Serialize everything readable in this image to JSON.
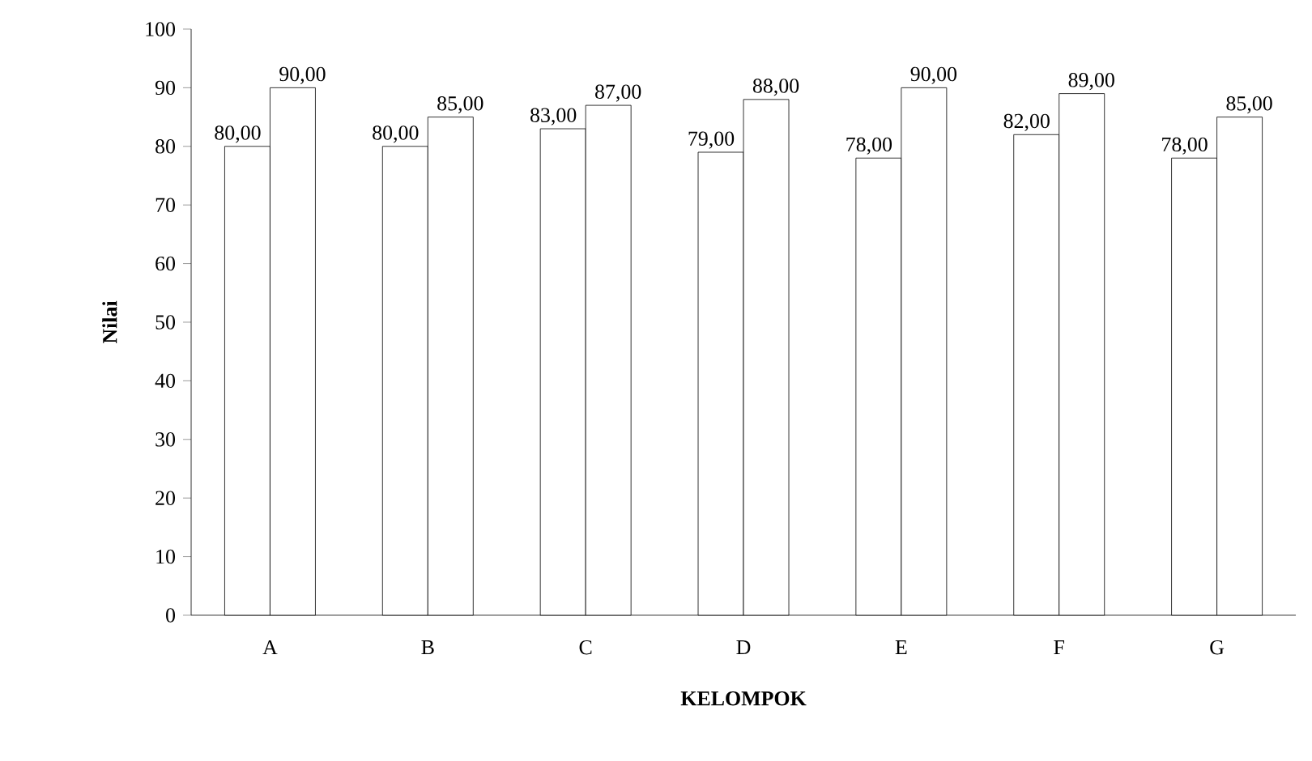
{
  "chart_data": {
    "type": "bar",
    "xlabel": "KELOMPOK",
    "ylabel": "Nilai",
    "categories": [
      "A",
      "B",
      "C",
      "D",
      "E",
      "F",
      "G"
    ],
    "series": [
      {
        "color": "#000000",
        "values": [
          80,
          80,
          83,
          79,
          78,
          82,
          78
        ],
        "value_labels": [
          "80,00",
          "80,00",
          "83,00",
          "79,00",
          "78,00",
          "82,00",
          "78,00"
        ]
      },
      {
        "color": "#000000",
        "values": [
          90,
          85,
          87,
          88,
          90,
          89,
          85
        ],
        "value_labels": [
          "90,00",
          "85,00",
          "87,00",
          "88,00",
          "90,00",
          "89,00",
          "85,00"
        ]
      }
    ],
    "ylim": [
      0,
      100
    ],
    "yticks": [
      0,
      10,
      20,
      30,
      40,
      50,
      60,
      70,
      80,
      90,
      100
    ],
    "grid": false
  }
}
